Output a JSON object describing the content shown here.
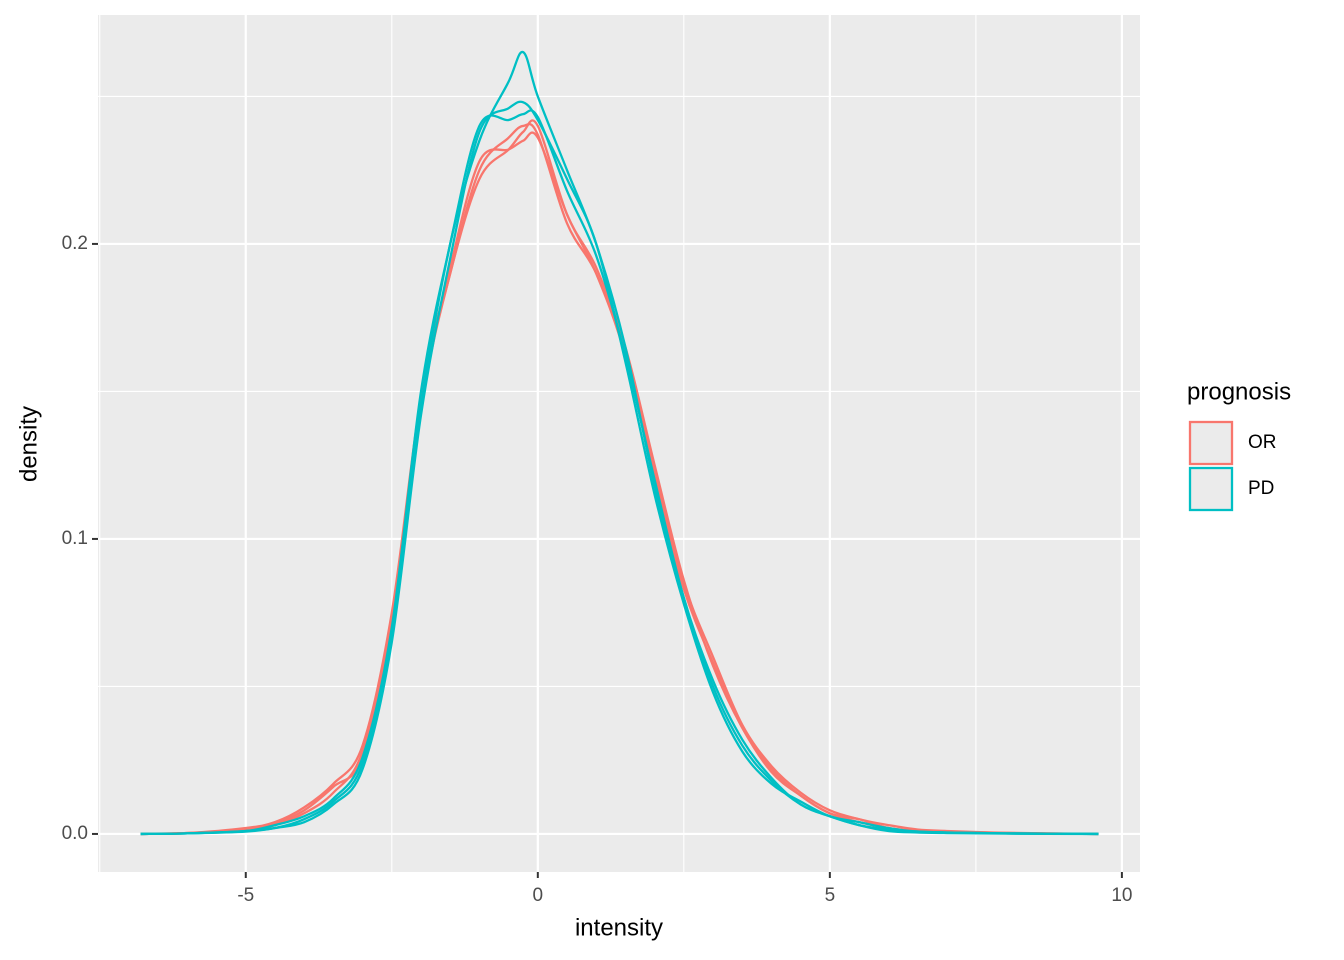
{
  "chart_data": {
    "type": "line",
    "x_label": "intensity",
    "y_label": "density",
    "legend_title": "prognosis",
    "xlim": [
      -7.53,
      10.31
    ],
    "ylim": [
      -0.0129,
      0.2776
    ],
    "xticks": [
      -5,
      0,
      5,
      10
    ],
    "yticks": [
      {
        "value": 0,
        "label": "0.0"
      },
      {
        "value": 0.1,
        "label": "0.1"
      },
      {
        "value": 0.2,
        "label": "0.2"
      }
    ],
    "minor_xticks": [
      -7.5,
      -2.5,
      2.5,
      7.5
    ],
    "minor_yticks": [
      0.05,
      0.15,
      0.25
    ],
    "grid": true,
    "legend": "right",
    "x": [
      -6.8,
      -6,
      -5,
      -4.5,
      -4,
      -3.5,
      -3,
      -2.5,
      -2,
      -1.5,
      -1,
      -0.5,
      -0.25,
      0,
      0.5,
      1,
      1.5,
      2,
      2.5,
      3,
      3.5,
      4,
      4.5,
      5,
      5.5,
      6,
      6.5,
      7,
      8,
      9.6
    ],
    "series": [
      {
        "name": "OR",
        "color": "#f8766d",
        "values": [
          0,
          0.0003,
          0.002,
          0.004,
          0.009,
          0.017,
          0.03,
          0.075,
          0.148,
          0.19,
          0.225,
          0.236,
          0.24,
          0.237,
          0.207,
          0.19,
          0.163,
          0.122,
          0.085,
          0.06,
          0.037,
          0.023,
          0.014,
          0.008,
          0.005,
          0.003,
          0.0015,
          0.001,
          0.0004,
          0
        ]
      },
      {
        "name": "OR",
        "color": "#f8766d",
        "values": [
          0,
          0.0003,
          0.001,
          0.003,
          0.007,
          0.014,
          0.028,
          0.072,
          0.145,
          0.19,
          0.222,
          0.232,
          0.238,
          0.24,
          0.21,
          0.192,
          0.165,
          0.125,
          0.086,
          0.057,
          0.036,
          0.021,
          0.013,
          0.007,
          0.005,
          0.002,
          0.001,
          0.0008,
          0.0003,
          0
        ]
      },
      {
        "name": "OR",
        "color": "#f8766d",
        "values": [
          0,
          0.0003,
          0.0015,
          0.0035,
          0.008,
          0.016,
          0.026,
          0.07,
          0.147,
          0.192,
          0.228,
          0.232,
          0.235,
          0.236,
          0.21,
          0.19,
          0.162,
          0.12,
          0.083,
          0.058,
          0.036,
          0.022,
          0.013,
          0.007,
          0.004,
          0.002,
          0.001,
          0.0007,
          0.0003,
          0
        ]
      },
      {
        "name": "PD",
        "color": "#00bfc4",
        "values": [
          0,
          0.0002,
          0.001,
          0.002,
          0.005,
          0.011,
          0.024,
          0.068,
          0.145,
          0.2,
          0.235,
          0.255,
          0.265,
          0.25,
          0.225,
          0.2,
          0.165,
          0.118,
          0.08,
          0.05,
          0.03,
          0.018,
          0.01,
          0.006,
          0.003,
          0.001,
          0.0005,
          0.0003,
          0.0001,
          0
        ]
      },
      {
        "name": "PD",
        "color": "#00bfc4",
        "values": [
          0,
          0.0002,
          0.0008,
          0.002,
          0.004,
          0.01,
          0.022,
          0.065,
          0.142,
          0.195,
          0.238,
          0.246,
          0.248,
          0.242,
          0.222,
          0.2,
          0.16,
          0.115,
          0.078,
          0.048,
          0.028,
          0.017,
          0.011,
          0.006,
          0.004,
          0.002,
          0.0008,
          0.0005,
          0.0002,
          0
        ]
      },
      {
        "name": "PD",
        "color": "#00bfc4",
        "values": [
          0,
          0.0002,
          0.001,
          0.003,
          0.006,
          0.012,
          0.026,
          0.07,
          0.15,
          0.2,
          0.24,
          0.242,
          0.244,
          0.243,
          0.218,
          0.196,
          0.162,
          0.12,
          0.08,
          0.052,
          0.032,
          0.019,
          0.01,
          0.006,
          0.003,
          0.0015,
          0.0008,
          0.0005,
          0.0002,
          0
        ]
      }
    ]
  }
}
